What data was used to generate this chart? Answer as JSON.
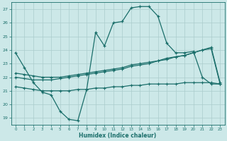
{
  "xlabel": "Humidex (Indice chaleur)",
  "bg_color": "#cce8e8",
  "grid_color": "#aacccc",
  "line_color": "#1a6e6a",
  "xlim": [
    -0.5,
    23.5
  ],
  "ylim": [
    18.5,
    27.5
  ],
  "xticks": [
    0,
    1,
    2,
    3,
    4,
    5,
    6,
    7,
    8,
    9,
    10,
    11,
    12,
    13,
    14,
    15,
    16,
    17,
    18,
    19,
    20,
    21,
    22,
    23
  ],
  "yticks": [
    19,
    20,
    21,
    22,
    23,
    24,
    25,
    26,
    27
  ],
  "line1_x": [
    0,
    1,
    2,
    3,
    4,
    5,
    6,
    7,
    8,
    9,
    10,
    11,
    12,
    13,
    14,
    15,
    16,
    17,
    18,
    19,
    20,
    21,
    22,
    23
  ],
  "line1_y": [
    23.8,
    22.7,
    21.6,
    20.9,
    20.7,
    19.5,
    18.9,
    18.8,
    21.1,
    25.3,
    24.3,
    26.0,
    26.1,
    27.1,
    27.2,
    27.2,
    26.5,
    24.5,
    23.8,
    23.8,
    23.9,
    22.0,
    21.5,
    21.5
  ],
  "line2_x": [
    0,
    1,
    2,
    3,
    4,
    5,
    6,
    7,
    8,
    9,
    10,
    11,
    12,
    13,
    14,
    15,
    16,
    17,
    18,
    19,
    20,
    21,
    22,
    23
  ],
  "line2_y": [
    22.0,
    21.9,
    21.8,
    21.8,
    21.8,
    21.9,
    22.0,
    22.1,
    22.2,
    22.3,
    22.4,
    22.5,
    22.6,
    22.8,
    22.9,
    23.0,
    23.2,
    23.3,
    23.5,
    23.6,
    23.8,
    24.0,
    24.1,
    21.5
  ],
  "line3_x": [
    0,
    1,
    2,
    3,
    4,
    5,
    6,
    7,
    8,
    9,
    10,
    11,
    12,
    13,
    14,
    15,
    16,
    17,
    18,
    19,
    20,
    21,
    22,
    23
  ],
  "line3_y": [
    22.3,
    22.2,
    22.1,
    22.0,
    22.0,
    22.0,
    22.1,
    22.2,
    22.3,
    22.4,
    22.5,
    22.6,
    22.7,
    22.9,
    23.0,
    23.1,
    23.2,
    23.4,
    23.5,
    23.6,
    23.8,
    24.0,
    24.2,
    21.6
  ],
  "line4_x": [
    0,
    1,
    2,
    3,
    4,
    5,
    6,
    7,
    8,
    9,
    10,
    11,
    12,
    13,
    14,
    15,
    16,
    17,
    18,
    19,
    20,
    21,
    22,
    23
  ],
  "line4_y": [
    21.3,
    21.2,
    21.1,
    21.0,
    21.0,
    21.0,
    21.0,
    21.1,
    21.1,
    21.2,
    21.2,
    21.3,
    21.3,
    21.4,
    21.4,
    21.5,
    21.5,
    21.5,
    21.5,
    21.6,
    21.6,
    21.6,
    21.6,
    21.5
  ]
}
